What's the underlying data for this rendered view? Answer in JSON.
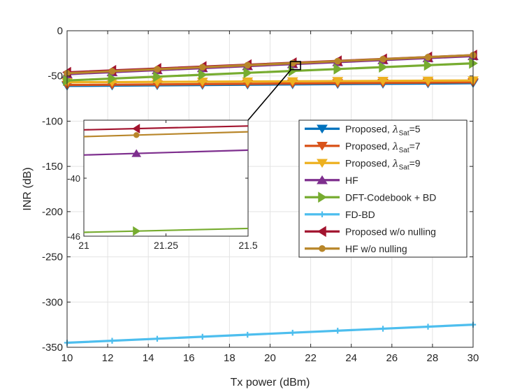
{
  "chart_data": {
    "type": "line",
    "title": "",
    "xlabel": "Tx power (dBm)",
    "ylabel": "INR (dB)",
    "xlim": [
      10,
      30
    ],
    "ylim": [
      -350,
      0
    ],
    "xticks": [
      10,
      12,
      14,
      16,
      18,
      20,
      22,
      24,
      26,
      28,
      30
    ],
    "yticks": [
      0,
      -50,
      -100,
      -150,
      -200,
      -250,
      -300,
      -350
    ],
    "grid": true,
    "legend_position": "center-right",
    "marker_x": [
      10,
      12.22,
      14.44,
      16.67,
      18.89,
      21.11,
      23.33,
      25.56,
      27.78,
      30
    ],
    "series": [
      {
        "name": "Proposed, λSat=5",
        "legend_main": "Proposed, ",
        "legend_lambda": "λ",
        "legend_sub": "Sat",
        "legend_tail": "=5",
        "color": "#0072BD",
        "marker": "triangle-down",
        "x": [
          10,
          30
        ],
        "y": [
          -61,
          -58
        ]
      },
      {
        "name": "Proposed, λSat=7",
        "legend_main": "Proposed, ",
        "legend_lambda": "λ",
        "legend_sub": "Sat",
        "legend_tail": "=7",
        "color": "#D95319",
        "marker": "triangle-down",
        "x": [
          10,
          30
        ],
        "y": [
          -60,
          -57
        ]
      },
      {
        "name": "Proposed, λSat=9",
        "legend_main": "Proposed, ",
        "legend_lambda": "λ",
        "legend_sub": "Sat",
        "legend_tail": "=9",
        "color": "#EDB120",
        "marker": "triangle-down",
        "x": [
          10,
          30
        ],
        "y": [
          -57,
          -55
        ]
      },
      {
        "name": "HF",
        "legend_main": "HF",
        "color": "#7E2F8E",
        "marker": "triangle-up",
        "x": [
          10,
          30
        ],
        "y": [
          -48,
          -28
        ]
      },
      {
        "name": "DFT-Codebook + BD",
        "legend_main": "DFT-Codebook + BD",
        "color": "#77AC30",
        "marker": "triangle-right",
        "x": [
          10,
          30
        ],
        "y": [
          -55,
          -36
        ]
      },
      {
        "name": "FD-BD",
        "legend_main": "FD-BD",
        "color": "#4DBEEE",
        "marker": "plus",
        "x": [
          10,
          30
        ],
        "y": [
          -345,
          -325
        ]
      },
      {
        "name": "Proposed w/o nulling",
        "legend_main": "Proposed w/o nulling",
        "color": "#A2142F",
        "marker": "triangle-left",
        "x": [
          10,
          30
        ],
        "y": [
          -46,
          -27
        ]
      },
      {
        "name": "HF w/o nulling",
        "legend_main": "HF w/o nulling",
        "color": "#B8862A",
        "marker": "circle",
        "x": [
          10,
          30
        ],
        "y": [
          -47,
          -27
        ]
      }
    ],
    "inset": {
      "xlim": [
        21,
        21.5
      ],
      "ylim": [
        -46,
        -34
      ],
      "xticks": [
        21,
        21.25,
        21.5
      ],
      "xtick_labels": [
        "21",
        "21.25",
        "21.5"
      ],
      "yticks": [
        -40,
        -46
      ],
      "ytick_labels": [
        "-40",
        "-46"
      ],
      "marker_x": 21.16,
      "series": [
        {
          "name": "Proposed w/o nulling",
          "color": "#A2142F",
          "marker": "triangle-left",
          "y": [
            -35.0,
            -34.6
          ]
        },
        {
          "name": "HF w/o nulling",
          "color": "#B8862A",
          "marker": "circle",
          "y": [
            -35.7,
            -35.2
          ]
        },
        {
          "name": "HF",
          "color": "#7E2F8E",
          "marker": "triangle-up",
          "y": [
            -37.6,
            -37.1
          ]
        },
        {
          "name": "DFT-Codebook + BD",
          "color": "#77AC30",
          "marker": "triangle-right",
          "y": [
            -45.6,
            -45.2
          ]
        }
      ],
      "zoom_box_x": [
        21,
        21.5
      ],
      "zoom_box_y": [
        -43,
        -34
      ]
    }
  }
}
